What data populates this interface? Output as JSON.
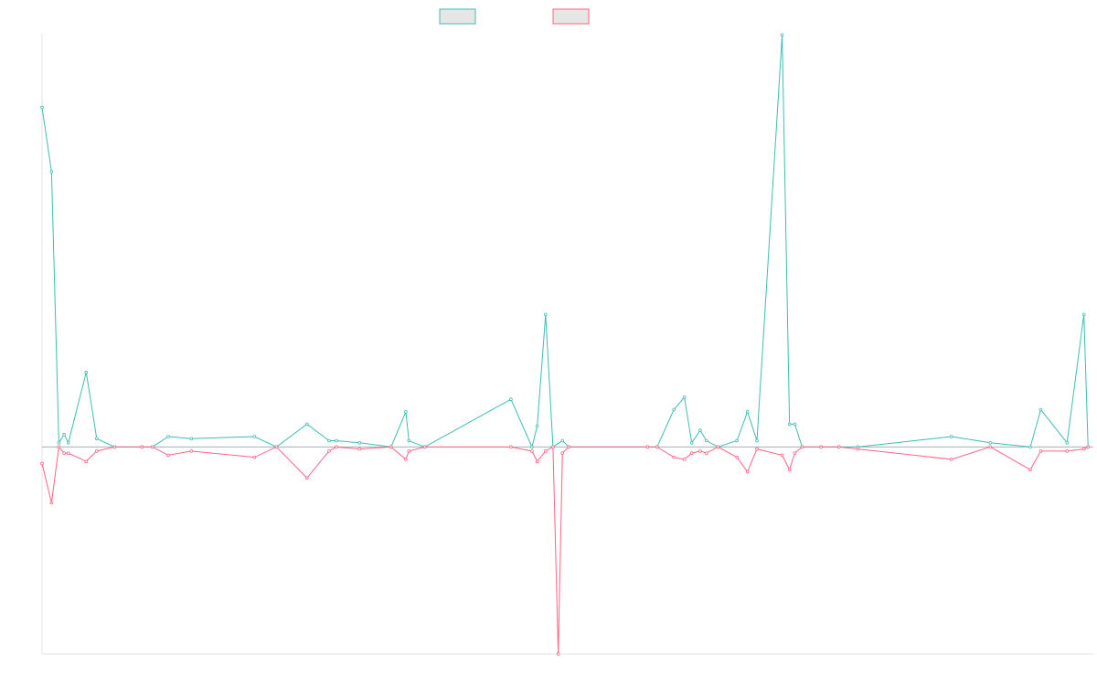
{
  "chart_data": {
    "type": "line",
    "title": "",
    "xlabel": "",
    "ylabel": "",
    "grid": false,
    "legend_position": "top-center",
    "ylim": [
      -100,
      200
    ],
    "series": [
      {
        "color": "#3dbdb4",
        "fill": "#e6e6e6",
        "values": [
          [
            0,
            164
          ],
          [
            0.9,
            133
          ],
          [
            1.6,
            2
          ],
          [
            2.1,
            6
          ],
          [
            2.5,
            2
          ],
          [
            4.2,
            36
          ],
          [
            5.2,
            4
          ],
          [
            6.9,
            0
          ],
          [
            9.5,
            0
          ],
          [
            10.5,
            0
          ],
          [
            12,
            5
          ],
          [
            14.2,
            4
          ],
          [
            20.2,
            5
          ],
          [
            22.3,
            0
          ],
          [
            25.2,
            11
          ],
          [
            27.3,
            3
          ],
          [
            28,
            3
          ],
          [
            30.2,
            2
          ],
          [
            33.2,
            0
          ],
          [
            34.6,
            17
          ],
          [
            34.9,
            3
          ],
          [
            36.4,
            0
          ],
          [
            44.6,
            23
          ],
          [
            46.6,
            0
          ],
          [
            47.1,
            10
          ],
          [
            47.9,
            64
          ],
          [
            48.6,
            0
          ],
          [
            49.5,
            3
          ],
          [
            50.1,
            0
          ],
          [
            57.6,
            0
          ],
          [
            58.5,
            0
          ],
          [
            60.1,
            18
          ],
          [
            61.1,
            24
          ],
          [
            61.8,
            2
          ],
          [
            62.6,
            8
          ],
          [
            63.2,
            3
          ],
          [
            64.3,
            0
          ],
          [
            66.1,
            3
          ],
          [
            67.1,
            17
          ],
          [
            68,
            3
          ],
          [
            70.4,
            199
          ],
          [
            71.1,
            11
          ],
          [
            71.6,
            11
          ],
          [
            72.3,
            0
          ],
          [
            74.1,
            0
          ],
          [
            75.8,
            0
          ],
          [
            77.6,
            0
          ],
          [
            86.5,
            5
          ],
          [
            90.2,
            2
          ],
          [
            94,
            0
          ],
          [
            95,
            18
          ],
          [
            97.5,
            2
          ],
          [
            99.1,
            64
          ],
          [
            99.5,
            0
          ]
        ]
      },
      {
        "color": "#ff6384",
        "fill": "#e6e6e6",
        "values": [
          [
            0,
            -8
          ],
          [
            0.9,
            -27
          ],
          [
            1.6,
            0
          ],
          [
            2.1,
            -3
          ],
          [
            2.5,
            -3
          ],
          [
            4.2,
            -7
          ],
          [
            5.2,
            -2
          ],
          [
            6.9,
            0
          ],
          [
            9.5,
            0
          ],
          [
            10.5,
            0
          ],
          [
            12,
            -4
          ],
          [
            14.2,
            -2
          ],
          [
            20.2,
            -5
          ],
          [
            22.3,
            0
          ],
          [
            25.2,
            -15
          ],
          [
            27.3,
            -2
          ],
          [
            28,
            0
          ],
          [
            30.2,
            -1
          ],
          [
            33.2,
            0
          ],
          [
            34.6,
            -6
          ],
          [
            34.9,
            -2
          ],
          [
            36.4,
            0
          ],
          [
            44.6,
            0
          ],
          [
            46.6,
            -2
          ],
          [
            47.1,
            -7
          ],
          [
            47.9,
            -2
          ],
          [
            48.6,
            0
          ],
          [
            49.1,
            -100
          ],
          [
            49.5,
            -3
          ],
          [
            50.1,
            0
          ],
          [
            57.6,
            0
          ],
          [
            58.5,
            0
          ],
          [
            60.1,
            -5
          ],
          [
            61.1,
            -6
          ],
          [
            61.8,
            -3
          ],
          [
            62.6,
            -2
          ],
          [
            63.2,
            -3
          ],
          [
            64.3,
            0
          ],
          [
            66.1,
            -5
          ],
          [
            67.1,
            -12
          ],
          [
            68,
            -1
          ],
          [
            70.4,
            -4
          ],
          [
            71.1,
            -11
          ],
          [
            71.6,
            -3
          ],
          [
            72.3,
            0
          ],
          [
            74.1,
            0
          ],
          [
            75.8,
            0
          ],
          [
            77.6,
            -1
          ],
          [
            86.5,
            -6
          ],
          [
            90.2,
            0
          ],
          [
            94,
            -11
          ],
          [
            95,
            -2
          ],
          [
            97.5,
            -2
          ],
          [
            99.1,
            -1
          ],
          [
            99.5,
            0
          ]
        ]
      }
    ]
  }
}
